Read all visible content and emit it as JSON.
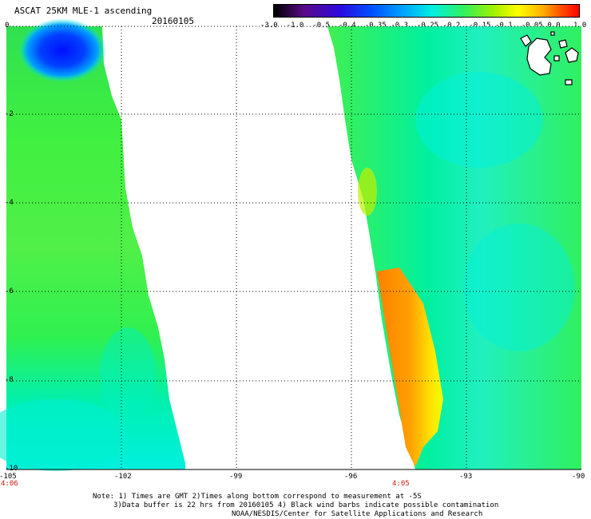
{
  "header": {
    "title": "ASCAT 25KM MLE-1 ascending",
    "date": "20160105"
  },
  "colorbar": {
    "labels": [
      "-3.0",
      "-1.0",
      "-0.5",
      "-0.4",
      "-0.35",
      "-0.3",
      "-0.25",
      "-0.2",
      "-0.15",
      "-0.1",
      "-0.05",
      "0.0",
      "1.0"
    ]
  },
  "axes": {
    "x_ticks": [
      "-105",
      "-102",
      "-99",
      "-96",
      "-93",
      "-90"
    ],
    "y_ticks": [
      "0",
      "-2",
      "-4",
      "-6",
      "-8",
      "-10"
    ]
  },
  "swath_times": {
    "left": "4:06",
    "right": "4:05"
  },
  "notes": {
    "line1": "Note: 1) Times are GMT 2)Times along bottom correspond to measurement at -5S",
    "line2": "3)Data buffer is 22 hrs from 20160105 4) Black wind barbs indicate possible contamination",
    "line3": "NOAA/NESDIS/Center for Satellite Applications and Research"
  },
  "colors": {
    "background_swath": "#00ff80",
    "cyan": "#00f0e8",
    "green": "#30f040",
    "yellow": "#ffff00",
    "orange": "#ff8000",
    "blue": "#0020ff"
  }
}
